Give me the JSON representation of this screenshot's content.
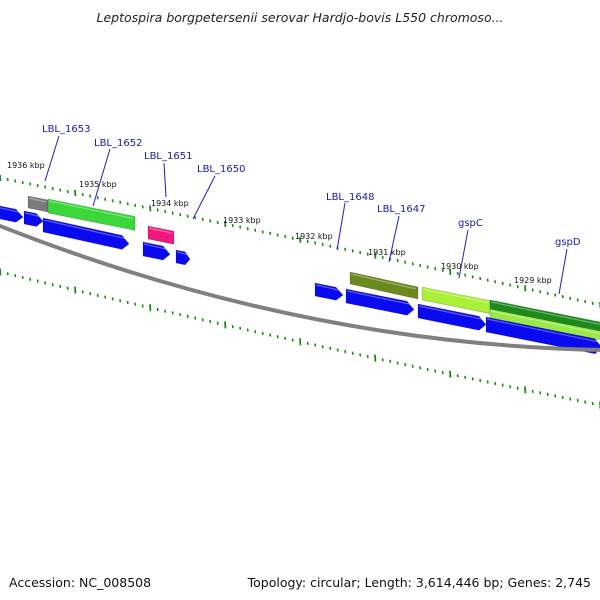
{
  "title": "Leptospira borgpetersenii serovar Hardjo-bovis L550 chromoso...",
  "footer": {
    "accession": "Accession: NC_008508",
    "summary": "Topology: circular; Length: 3,614,446 bp; Genes: 2,745"
  },
  "colors": {
    "forward_cds": "#0a0af0",
    "backbone": "#808080",
    "tick": "#1c8a1c",
    "label": "#1a1aa8",
    "green": "#3ad63a",
    "gray": "#7a7a7a",
    "pink": "#f01880",
    "olive": "#6a8a1e",
    "lime": "#aaf03a",
    "dark_green": "#1e8a1e"
  },
  "scale_labels": [
    "1936 kbp",
    "1935 kbp",
    "1934 kbp",
    "1933 kbp",
    "1932 kbp",
    "1931 kbp",
    "1930 kbp",
    "1929 kbp"
  ],
  "gene_labels": [
    "LBL_1653",
    "LBL_1652",
    "LBL_1651",
    "LBL_1650",
    "LBL_1648",
    "LBL_1647",
    "gspC",
    "gspD"
  ]
}
